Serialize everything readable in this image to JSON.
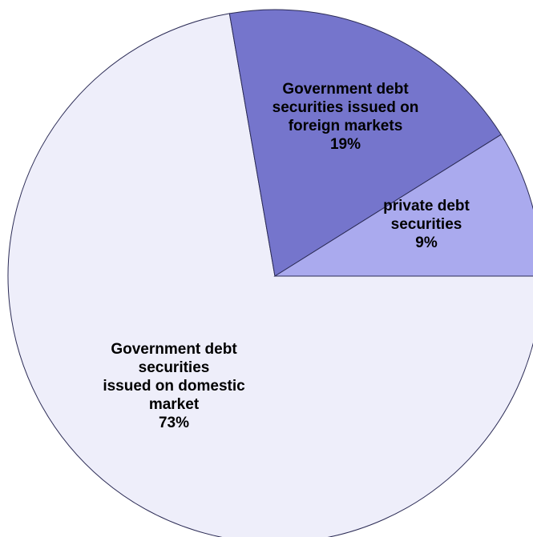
{
  "chart_data": {
    "type": "pie",
    "title": "",
    "start_angle_deg": 0,
    "direction": "clockwise",
    "legend": "none",
    "slices": [
      {
        "label_lines": [
          "Government debt",
          "securities",
          "issued on domestic",
          "market"
        ],
        "value": 73,
        "value_label": "73%",
        "color": "#eeeefa"
      },
      {
        "label_lines": [
          "Government debt",
          "securities issued on",
          "foreign markets"
        ],
        "value": 19,
        "value_label": "19%",
        "color": "#7575cc"
      },
      {
        "label_lines": [
          "private debt",
          "securities"
        ],
        "value": 9,
        "value_label": "9%",
        "color": "#aaaaee"
      }
    ]
  }
}
